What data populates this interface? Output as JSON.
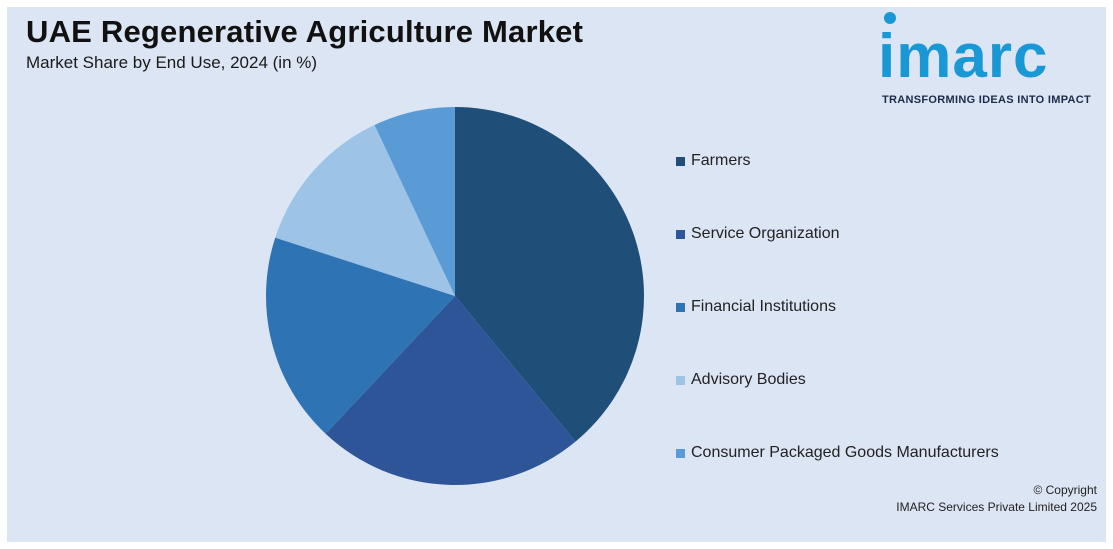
{
  "header": {
    "title": "UAE Regenerative Agriculture Market",
    "subtitle": "Market Share by End Use, 2024 (in %)"
  },
  "logo": {
    "text": "imarc",
    "tagline": "TRANSFORMING IDEAS INTO IMPACT",
    "color": "#1a98d5"
  },
  "chart_data": {
    "type": "pie",
    "title": "UAE Regenerative Agriculture Market",
    "subtitle": "Market Share by End Use, 2024 (in %)",
    "categories": [
      "Farmers",
      "Service Organization",
      "Financial Institutions",
      "Advisory Bodies",
      "Consumer Packaged Goods Manufacturers"
    ],
    "values": [
      39,
      23,
      18,
      13,
      7
    ],
    "colors": [
      "#1f4e79",
      "#2e5597",
      "#2e74b5",
      "#9dc3e6",
      "#5b9bd5"
    ],
    "start_angle": "12 o'clock",
    "direction": "clockwise",
    "legend_position": "right"
  },
  "footer": {
    "copyright_line1": "© Copyright",
    "copyright_line2": "IMARC Services Private Limited 2025"
  }
}
